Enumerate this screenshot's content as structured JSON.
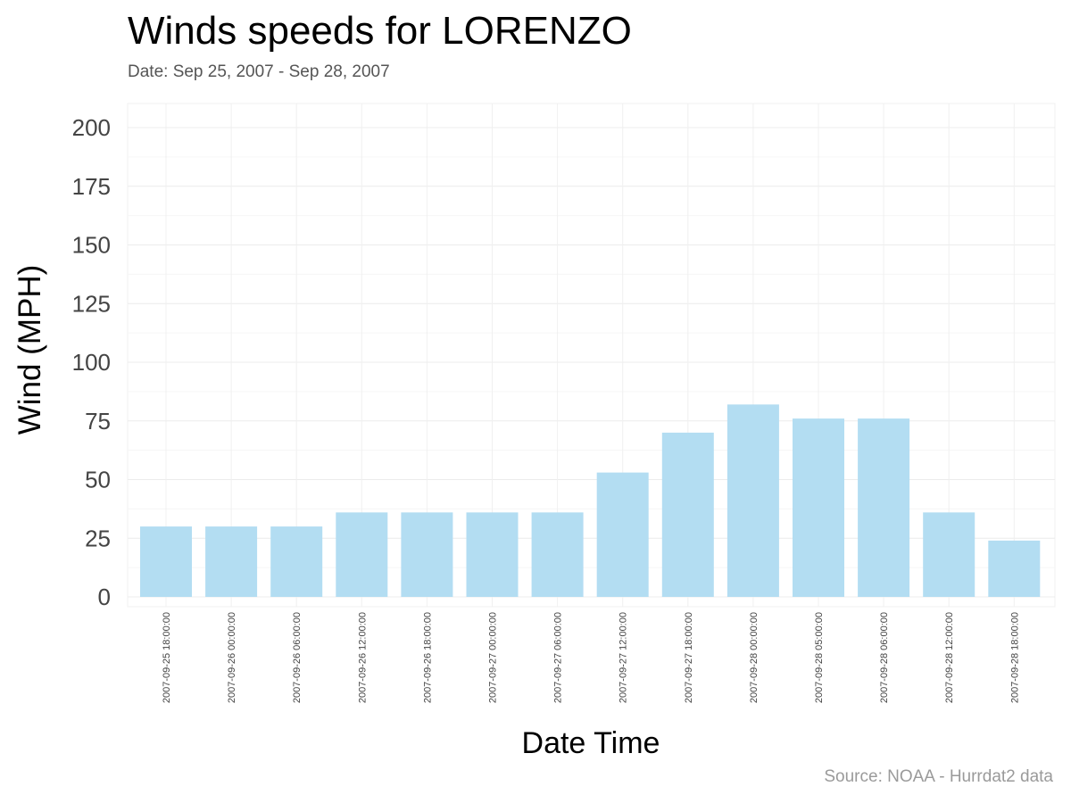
{
  "chart_data": {
    "type": "bar",
    "title": "Winds speeds for LORENZO",
    "subtitle": "Date:  Sep 25, 2007 - Sep 28, 2007",
    "xlabel": "Date Time",
    "ylabel": "Wind (MPH)",
    "caption": "Source: NOAA - Hurrdat2 data",
    "categories": [
      "2007-09-25 18:00:00",
      "2007-09-26 00:00:00",
      "2007-09-26 06:00:00",
      "2007-09-26 12:00:00",
      "2007-09-26 18:00:00",
      "2007-09-27 00:00:00",
      "2007-09-27 06:00:00",
      "2007-09-27 12:00:00",
      "2007-09-27 18:00:00",
      "2007-09-28 00:00:00",
      "2007-09-28 05:00:00",
      "2007-09-28 06:00:00",
      "2007-09-28 12:00:00",
      "2007-09-28 18:00:00"
    ],
    "values": [
      30,
      30,
      30,
      36,
      36,
      36,
      36,
      53,
      70,
      82,
      76,
      76,
      36,
      24
    ],
    "ylim": [
      0,
      210
    ],
    "yticks": [
      0,
      25,
      50,
      75,
      100,
      125,
      150,
      175,
      200
    ],
    "grid": true,
    "legend": "none",
    "bar_color": "#b3ddf2"
  }
}
